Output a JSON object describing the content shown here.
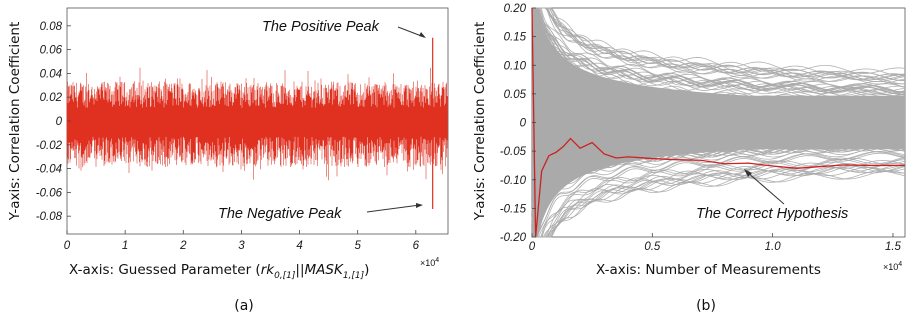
{
  "chart_data": [
    {
      "panel_label": "(a)",
      "type": "line",
      "xlabel_prefix": "X-axis: Guessed Parameter (",
      "xlabel_math": [
        {
          "text": "rk",
          "sub": "0,[1]"
        },
        {
          "text": "||",
          "sub": ""
        },
        {
          "text": "MASK",
          "sub": "1,[1]"
        }
      ],
      "xlabel_suffix": ")",
      "ylabel": "Y-axis: Correlation Coefficient",
      "x_multiplier": "×10",
      "x_multiplier_exp": "4",
      "xlim": [
        0,
        65536
      ],
      "ylim": [
        -0.095,
        0.095
      ],
      "xticks": [
        0,
        10000,
        20000,
        30000,
        40000,
        50000,
        60000
      ],
      "xtick_labels": [
        "0",
        "1",
        "2",
        "3",
        "4",
        "5",
        "6"
      ],
      "yticks": [
        0.08,
        0.06,
        0.04,
        0.02,
        0,
        -0.02,
        -0.04,
        -0.06,
        -0.08
      ],
      "ytick_labels": [
        "0.08",
        "0.06",
        "0.04",
        "0.02",
        "0",
        "-0.02",
        "-0.04",
        "-0.06",
        "-0.08"
      ],
      "series": [
        {
          "color": "#e03020",
          "envelope_pos": 0.04,
          "envelope_neg": -0.047
        }
      ],
      "peaks": [
        {
          "label": "The Positive Peak",
          "x": 62900,
          "y": 0.07
        },
        {
          "label": "The Negative Peak",
          "x": 62900,
          "y": -0.074
        }
      ]
    },
    {
      "panel_label": "(b)",
      "type": "line",
      "xlabel": "X-axis: Number of Measurements",
      "ylabel": "Y-axis: Correlation Coefficient",
      "x_multiplier": "×10",
      "x_multiplier_exp": "4",
      "xlim": [
        0,
        15500
      ],
      "ylim": [
        -0.2,
        0.2
      ],
      "xticks": [
        0,
        5000,
        10000,
        15000
      ],
      "xtick_labels": [
        "0",
        "0.5",
        "1.0",
        "1.5"
      ],
      "yticks": [
        0.2,
        0.15,
        0.1,
        0.05,
        0,
        -0.05,
        -0.1,
        -0.15,
        -0.2
      ],
      "ytick_labels": [
        "0.20",
        "0.15",
        "0.10",
        "0.05",
        "0",
        "-0.05",
        "-0.10",
        "-0.15",
        "-0.20"
      ],
      "band_color": "#aaaaaa",
      "band_final_pos": 0.055,
      "band_final_neg": -0.055,
      "correct_hypothesis": {
        "label": "The Correct Hypothesis",
        "color": "#cc2222",
        "x": [
          0,
          150,
          400,
          700,
          1000,
          1300,
          1600,
          2000,
          2500,
          3000,
          3500,
          4000,
          5000,
          6000,
          7000,
          8000,
          9000,
          10000,
          11000,
          12000,
          13000,
          14000,
          15500
        ],
        "y": [
          0.2,
          -0.2,
          -0.085,
          -0.058,
          -0.052,
          -0.042,
          -0.028,
          -0.045,
          -0.035,
          -0.055,
          -0.062,
          -0.06,
          -0.063,
          -0.065,
          -0.066,
          -0.072,
          -0.071,
          -0.076,
          -0.08,
          -0.077,
          -0.074,
          -0.075,
          -0.075
        ]
      },
      "annotation_point": {
        "x": 8400,
        "y": -0.07
      }
    }
  ]
}
